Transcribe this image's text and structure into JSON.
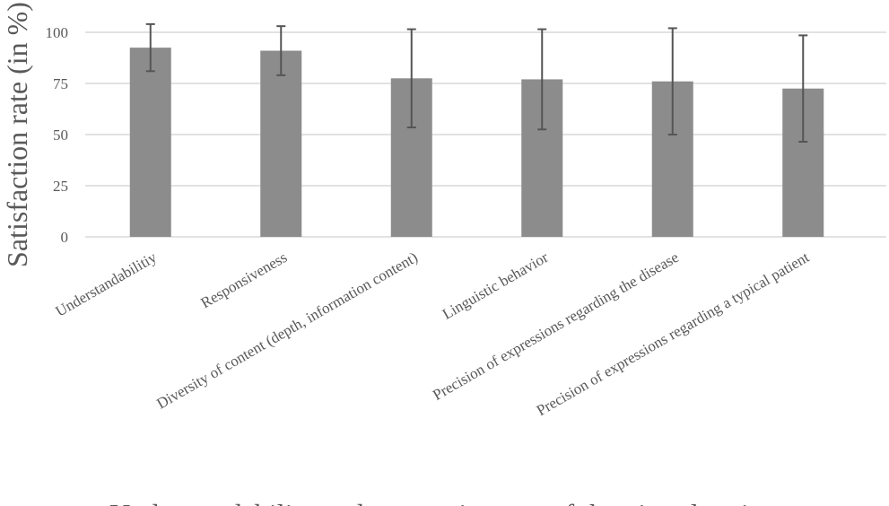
{
  "chart_data": {
    "type": "bar",
    "categories": [
      "Understandabilitiy",
      "Responsiveness",
      "Diversity of content (depth, information content)",
      "Linguistic behavior",
      "Precision of expressions regarding the disease",
      "Precision of expressions regarding a typical patient"
    ],
    "values": [
      92.5,
      91,
      77.5,
      77,
      76,
      72.5
    ],
    "error": [
      11.5,
      12,
      24,
      24.5,
      26,
      26
    ],
    "ylabel": "Satisfaction rate (in %)",
    "xlabel": "Understandability and responsiveness of the virtual patient",
    "ylim": [
      0,
      100
    ],
    "yticks": [
      0,
      25,
      50,
      75,
      100
    ],
    "grid": true,
    "legend": "none",
    "colors": {
      "bar": "#8c8c8c",
      "error": "#555555",
      "grid": "#d9d9d9",
      "text": "#595959"
    }
  }
}
